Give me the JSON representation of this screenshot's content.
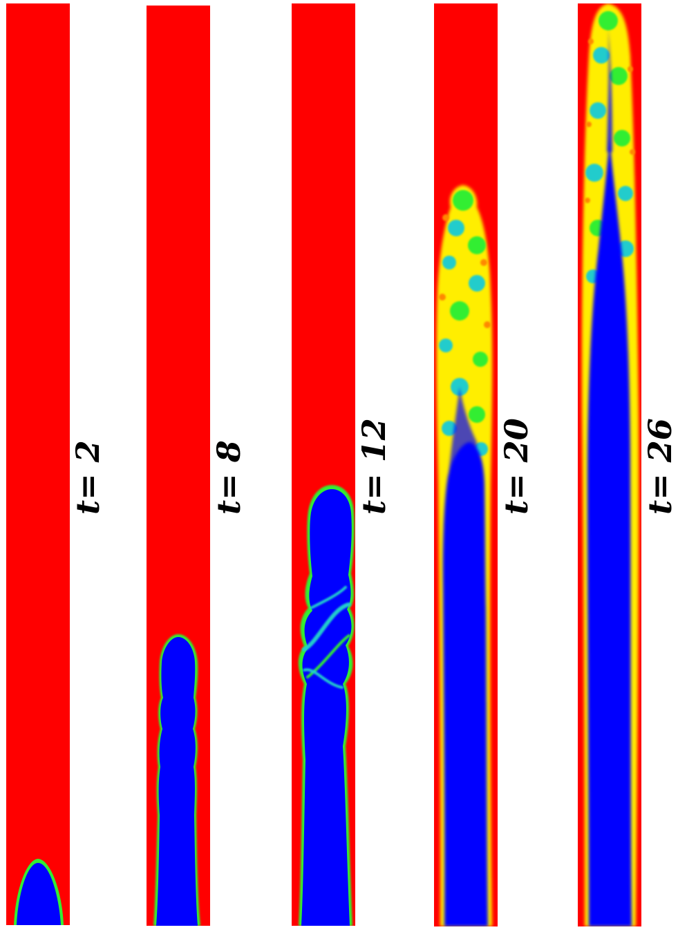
{
  "figure": {
    "panels": [
      {
        "label": "t= 2"
      },
      {
        "label": "t= 8"
      },
      {
        "label": "t= 12"
      },
      {
        "label": "t= 20"
      },
      {
        "label": "t= 26"
      }
    ],
    "colors": {
      "ambient": "#ff0000",
      "jet": "#0000ff",
      "mixing_orange": "#ff8800",
      "mixing_yellow": "#ffee00",
      "mixing_green": "#33ee33",
      "mixing_cyan": "#22cccc"
    }
  }
}
